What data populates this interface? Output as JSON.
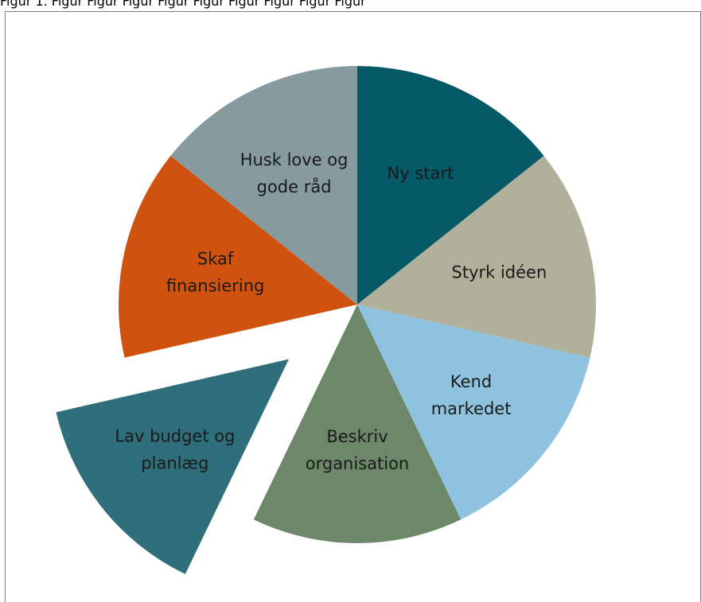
{
  "header": {
    "caption": "Figur 1. Figur Figur Figur Figur Figur Figur Figur Figur Figur"
  },
  "chart_data": {
    "type": "pie",
    "title": "",
    "slices": [
      {
        "label": "Ny start",
        "value": 1,
        "color": "#065a67",
        "exploded": false
      },
      {
        "label": "Styrk idéen",
        "value": 1,
        "color": "#b0b09b",
        "exploded": false
      },
      {
        "label": "Kend markedet",
        "value": 1,
        "color": "#8ec2de",
        "exploded": false
      },
      {
        "label": "Beskriv organisation",
        "value": 1,
        "color": "#6d8769",
        "exploded": false
      },
      {
        "label": "Lav budget og planlæg",
        "value": 1,
        "color": "#2f6f7c",
        "exploded": true
      },
      {
        "label": "Skaf finansiering",
        "value": 1,
        "color": "#cf530e",
        "exploded": false
      },
      {
        "label": "Husk love og gode råd",
        "value": 1,
        "color": "#869ba0",
        "exploded": false
      }
    ],
    "label_lines": [
      [
        "Ny start"
      ],
      [
        "Styrk idéen"
      ],
      [
        "Kend",
        "markedet"
      ],
      [
        "Beskriv",
        "organisation"
      ],
      [
        "Lav budget og",
        "planlæg"
      ],
      [
        "Skaf",
        "finansiering"
      ],
      [
        "Husk love og",
        "gode råd"
      ]
    ],
    "legend": "none"
  }
}
